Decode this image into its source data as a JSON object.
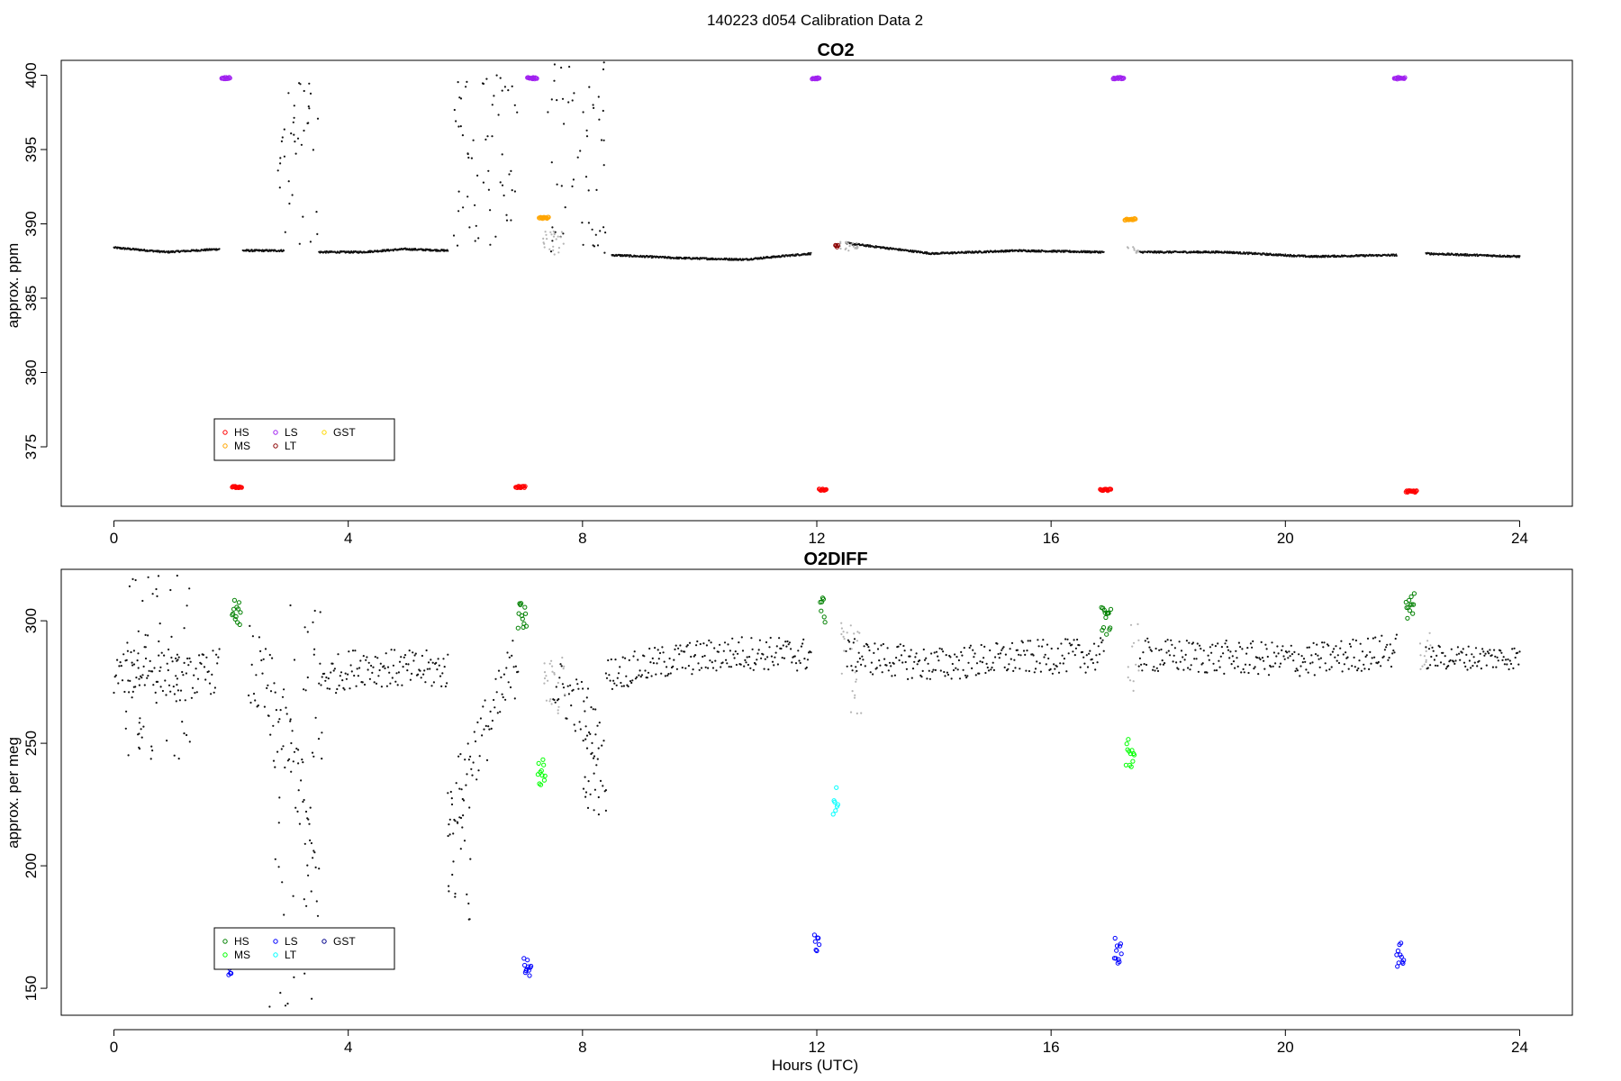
{
  "figure": {
    "suptitle": "140223   d054   Calibration Data 2",
    "xlabel": "Hours (UTC)"
  },
  "chart_data": [
    {
      "type": "scatter",
      "title": "CO2",
      "ylabel": "approx. ppm",
      "xlim": [
        -0.9,
        24.9
      ],
      "ylim": [
        371.0,
        401.0
      ],
      "xticks": [
        0,
        4,
        8,
        12,
        16,
        20,
        24
      ],
      "yticks": [
        375,
        380,
        385,
        390,
        395,
        400
      ],
      "grid": false,
      "legend": {
        "placement": "bottom-left",
        "entries": [
          {
            "label": "HS",
            "color": "#FF0000"
          },
          {
            "label": "MS",
            "color": "#FFA500"
          },
          {
            "label": "LS",
            "color": "#A020F0"
          },
          {
            "label": "LT",
            "color": "#8B0000"
          },
          {
            "label": "GST",
            "color": "#FFD700"
          }
        ]
      },
      "ambient_segments": [
        {
          "x0": 0.0,
          "x1": 1.8,
          "y": [
            388.4,
            388.1,
            388.3
          ]
        },
        {
          "x0": 2.2,
          "x1": 2.9,
          "y": [
            388.2,
            388.2
          ]
        },
        {
          "x0": 3.5,
          "x1": 5.7,
          "y": [
            388.1,
            388.1,
            388.3,
            388.2
          ]
        },
        {
          "x0": 8.5,
          "x1": 11.9,
          "y": [
            387.9,
            387.7,
            387.6,
            388.0
          ]
        },
        {
          "x0": 12.5,
          "x1": 16.9,
          "y": [
            388.7,
            388.0,
            388.2,
            388.1
          ]
        },
        {
          "x0": 17.5,
          "x1": 21.9,
          "y": [
            388.1,
            388.1,
            387.8,
            387.9
          ]
        },
        {
          "x0": 22.4,
          "x1": 24.0,
          "y": [
            388.0,
            387.8
          ]
        }
      ],
      "ambient_scatter": [
        {
          "x0": 2.8,
          "x1": 3.5,
          "ymin": 388.5,
          "ymax": 399.5
        },
        {
          "x0": 5.8,
          "x1": 6.9,
          "ymin": 388.5,
          "ymax": 400.0
        },
        {
          "x0": 7.4,
          "x1": 8.4,
          "ymin": 388.0,
          "ymax": 401.0
        }
      ],
      "transition_gray": [
        {
          "x0": 7.3,
          "x1": 7.7,
          "ymin": 387.8,
          "ymax": 389.5
        },
        {
          "x0": 12.3,
          "x1": 12.7,
          "ymin": 388.2,
          "ymax": 388.8
        },
        {
          "x0": 17.3,
          "x1": 17.5,
          "ymin": 388.0,
          "ymax": 388.5
        }
      ],
      "calibrations": [
        {
          "series": "LS",
          "x": [
            1.84,
            1.98
          ],
          "y": 399.8
        },
        {
          "series": "HS",
          "x": [
            2.02,
            2.18
          ],
          "y": 372.3
        },
        {
          "series": "HS",
          "x": [
            6.86,
            7.02
          ],
          "y": 372.3
        },
        {
          "series": "LS",
          "x": [
            7.06,
            7.22
          ],
          "y": 399.8
        },
        {
          "series": "MS",
          "x": [
            7.26,
            7.42
          ],
          "y": 390.4
        },
        {
          "series": "LS",
          "x": [
            11.92,
            12.04
          ],
          "y": 399.8
        },
        {
          "series": "HS",
          "x": [
            12.04,
            12.16
          ],
          "y": 372.1
        },
        {
          "series": "LT",
          "x": [
            12.32,
            12.36
          ],
          "y": 388.5
        },
        {
          "series": "HS",
          "x": [
            16.84,
            17.02
          ],
          "y": 372.1
        },
        {
          "series": "LS",
          "x": [
            17.06,
            17.24
          ],
          "y": 399.8
        },
        {
          "series": "MS",
          "x": [
            17.26,
            17.44
          ],
          "y": 390.3
        },
        {
          "series": "LS",
          "x": [
            21.86,
            22.04
          ],
          "y": 399.8
        },
        {
          "series": "HS",
          "x": [
            22.06,
            22.24
          ],
          "y": 372.0
        }
      ]
    },
    {
      "type": "scatter",
      "title": "O2DIFF",
      "ylabel": "approx. per meg",
      "xlim": [
        -0.9,
        24.9
      ],
      "ylim": [
        139,
        321
      ],
      "xticks": [
        0,
        4,
        8,
        12,
        16,
        20,
        24
      ],
      "yticks": [
        150,
        200,
        250,
        300
      ],
      "grid": false,
      "legend": {
        "placement": "bottom-left",
        "entries": [
          {
            "label": "HS",
            "color": "#008000"
          },
          {
            "label": "MS",
            "color": "#00FF00"
          },
          {
            "label": "LS",
            "color": "#0000FF"
          },
          {
            "label": "LT",
            "color": "#00FFFF"
          },
          {
            "label": "GST",
            "color": "#00008B"
          }
        ]
      },
      "ambient_segments": [
        {
          "x0": 0.0,
          "x1": 1.8,
          "y": [
            278,
            280,
            276,
            280
          ],
          "jitter": 9
        },
        {
          "x0": 2.3,
          "x1": 3.5,
          "y": [
            282,
            268,
            240,
            190
          ],
          "jitter": 18
        },
        {
          "x0": 3.5,
          "x1": 5.7,
          "y": [
            276,
            282,
            280,
            280
          ],
          "jitter": 8
        },
        {
          "x0": 5.7,
          "x1": 6.9,
          "y": [
            220,
            245,
            262,
            285
          ],
          "jitter": 14
        },
        {
          "x0": 7.5,
          "x1": 8.4,
          "y": [
            275,
            268,
            262,
            240
          ],
          "jitter": 12
        },
        {
          "x0": 8.4,
          "x1": 11.9,
          "y": [
            278,
            284,
            287,
            286
          ],
          "jitter": 7
        },
        {
          "x0": 12.5,
          "x1": 16.9,
          "y": [
            286,
            282,
            285,
            286
          ],
          "jitter": 7
        },
        {
          "x0": 17.5,
          "x1": 21.9,
          "y": [
            286,
            285,
            284,
            288
          ],
          "jitter": 7
        },
        {
          "x0": 22.4,
          "x1": 24.0,
          "y": [
            285,
            285
          ],
          "jitter": 5
        }
      ],
      "ambient_scatter": [
        {
          "x0": 0.2,
          "x1": 1.3,
          "ymin": 243,
          "ymax": 319
        },
        {
          "x0": 2.6,
          "x1": 3.6,
          "ymin": 142,
          "ymax": 311
        },
        {
          "x0": 5.7,
          "x1": 6.1,
          "ymin": 177,
          "ymax": 228
        },
        {
          "x0": 8.0,
          "x1": 8.4,
          "ymin": 220,
          "ymax": 255
        }
      ],
      "transition_gray": [
        {
          "x0": 7.3,
          "x1": 7.7,
          "ymin": 262,
          "ymax": 285
        },
        {
          "x0": 12.4,
          "x1": 12.8,
          "ymin": 262,
          "ymax": 300
        },
        {
          "x0": 17.3,
          "x1": 17.5,
          "ymin": 270,
          "ymax": 300
        },
        {
          "x0": 22.3,
          "x1": 22.5,
          "ymin": 280,
          "ymax": 295
        }
      ],
      "calibrations": [
        {
          "series": "LS",
          "x": [
            1.96,
            2.0
          ],
          "y": 158
        },
        {
          "series": "HS",
          "x": [
            2.02,
            2.16
          ],
          "y": 303
        },
        {
          "series": "LS",
          "x": [
            7.0,
            7.12
          ],
          "y": 161
        },
        {
          "series": "HS",
          "x": [
            6.9,
            7.04
          ],
          "y": 303
        },
        {
          "series": "MS",
          "x": [
            7.24,
            7.36
          ],
          "y": 238
        },
        {
          "series": "LS",
          "x": [
            11.96,
            12.04
          ],
          "y": 168
        },
        {
          "series": "HS",
          "x": [
            12.06,
            12.14
          ],
          "y": 305
        },
        {
          "series": "LT",
          "x": [
            12.28,
            12.36
          ],
          "y": 227
        },
        {
          "series": "HS",
          "x": [
            16.86,
            17.02
          ],
          "y": 300
        },
        {
          "series": "LS",
          "x": [
            17.08,
            17.2
          ],
          "y": 166
        },
        {
          "series": "MS",
          "x": [
            17.28,
            17.42
          ],
          "y": 246
        },
        {
          "series": "LS",
          "x": [
            21.9,
            22.02
          ],
          "y": 164
        },
        {
          "series": "HS",
          "x": [
            22.06,
            22.2
          ],
          "y": 306
        }
      ]
    }
  ]
}
